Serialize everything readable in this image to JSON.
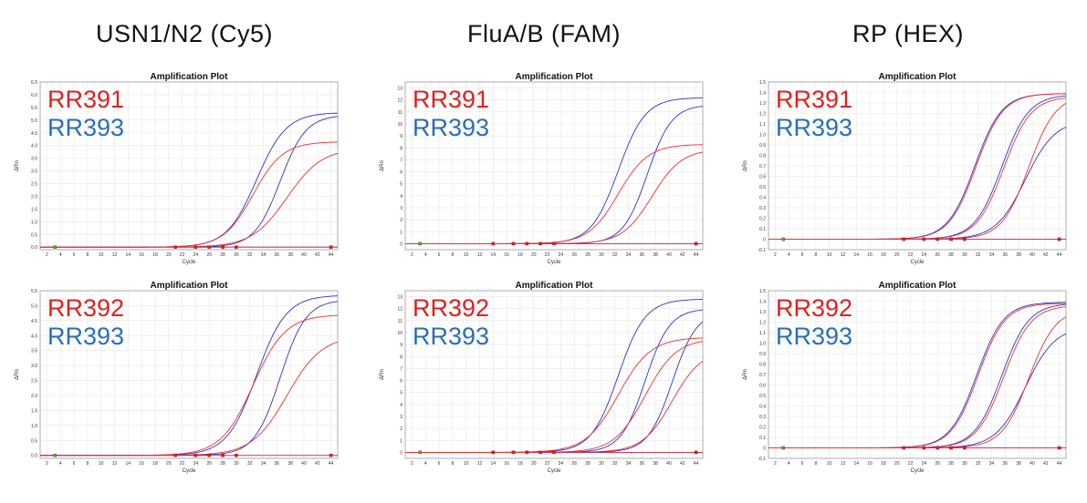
{
  "columns": [
    {
      "title": "USN1/N2 (Cy5)"
    },
    {
      "title": "FluA/B (FAM)"
    },
    {
      "title": "RP (HEX)"
    }
  ],
  "colors": {
    "red": "#e02020",
    "blue": "#2a6fb5",
    "curve_red": "#e83030",
    "curve_blue": "#3030c8",
    "grid": "#e6e6e6",
    "marker_green": "#39b54a"
  },
  "chart_data": [
    {
      "type": "line",
      "title": "Amplification Plot",
      "xlabel": "Cycle",
      "ylabel": "ΔRn",
      "xlim": [
        1,
        45
      ],
      "ylim": [
        -0.1,
        6.5
      ],
      "xticks": [
        2,
        4,
        6,
        8,
        10,
        12,
        14,
        16,
        18,
        20,
        22,
        24,
        26,
        28,
        30,
        32,
        34,
        36,
        38,
        40,
        42,
        44
      ],
      "yticks": [
        "0.0",
        "0.5",
        "1.0",
        "1.5",
        "2.0",
        "2.5",
        "3.0",
        "3.5",
        "4.0",
        "4.5",
        "5.0",
        "5.5",
        "6.0",
        "6.5"
      ],
      "labels": [
        {
          "text": "RR391",
          "color": "red"
        },
        {
          "text": "RR393",
          "color": "blue"
        }
      ],
      "series": [
        {
          "color": "blue",
          "max": 5.3,
          "mid": 33.0,
          "slope": 2.2
        },
        {
          "color": "blue",
          "max": 5.2,
          "mid": 36.5,
          "slope": 1.9
        },
        {
          "color": "red",
          "max": 4.15,
          "mid": 32.5,
          "slope": 2.2
        },
        {
          "color": "red",
          "max": 3.9,
          "mid": 37.5,
          "slope": 2.6
        }
      ]
    },
    {
      "type": "line",
      "title": "Amplification Plot",
      "xlabel": "Cycle",
      "ylabel": "ΔRn",
      "xlim": [
        1,
        45
      ],
      "ylim": [
        -0.5,
        13.5
      ],
      "xticks": [
        2,
        4,
        6,
        8,
        10,
        12,
        14,
        16,
        18,
        20,
        22,
        24,
        26,
        28,
        30,
        32,
        34,
        36,
        38,
        40,
        42,
        44
      ],
      "yticks": [
        "0",
        "1",
        "2",
        "3",
        "4",
        "5",
        "6",
        "7",
        "8",
        "9",
        "10",
        "11",
        "12",
        "13"
      ],
      "labels": [
        {
          "text": "RR391",
          "color": "red"
        },
        {
          "text": "RR393",
          "color": "blue"
        }
      ],
      "series": [
        {
          "color": "blue",
          "max": 12.2,
          "mid": 32.5,
          "slope": 2.0
        },
        {
          "color": "blue",
          "max": 11.6,
          "mid": 36.8,
          "slope": 1.8
        },
        {
          "color": "red",
          "max": 8.3,
          "mid": 32.5,
          "slope": 2.2
        },
        {
          "color": "red",
          "max": 7.9,
          "mid": 37.5,
          "slope": 2.2
        }
      ]
    },
    {
      "type": "line",
      "title": "Amplification Plot",
      "xlabel": "Cycle",
      "ylabel": "ΔRn",
      "xlim": [
        1,
        45
      ],
      "ylim": [
        -0.1,
        1.5
      ],
      "xticks": [
        2,
        4,
        6,
        8,
        10,
        12,
        14,
        16,
        18,
        20,
        22,
        24,
        26,
        28,
        30,
        32,
        34,
        36,
        38,
        40,
        42,
        44
      ],
      "yticks": [
        "-0.1",
        "0",
        "0.1",
        "0.2",
        "0.3",
        "0.4",
        "0.5",
        "0.6",
        "0.7",
        "0.8",
        "0.9",
        "1.0",
        "1.1",
        "1.2",
        "1.3",
        "1.4",
        "1.5"
      ],
      "labels": [
        {
          "text": "RR391",
          "color": "red"
        },
        {
          "text": "RR393",
          "color": "blue"
        }
      ],
      "series": [
        {
          "color": "blue",
          "max": 1.39,
          "mid": 31.5,
          "slope": 2.0
        },
        {
          "color": "red",
          "max": 1.39,
          "mid": 31.7,
          "slope": 2.0
        },
        {
          "color": "blue",
          "max": 1.38,
          "mid": 35.5,
          "slope": 2.0
        },
        {
          "color": "red",
          "max": 1.36,
          "mid": 35.8,
          "slope": 2.0
        },
        {
          "color": "blue",
          "max": 1.14,
          "mid": 39.0,
          "slope": 2.2
        },
        {
          "color": "red",
          "max": 1.38,
          "mid": 39.5,
          "slope": 2.0
        }
      ]
    },
    {
      "type": "line",
      "title": "Amplification Plot",
      "xlabel": "Cycle",
      "ylabel": "ΔRn",
      "xlim": [
        1,
        45
      ],
      "ylim": [
        -0.1,
        5.5
      ],
      "xticks": [
        2,
        4,
        6,
        8,
        10,
        12,
        14,
        16,
        18,
        20,
        22,
        24,
        26,
        28,
        30,
        32,
        34,
        36,
        38,
        40,
        42,
        44
      ],
      "yticks": [
        "0.0",
        "0.5",
        "1.0",
        "1.5",
        "2.0",
        "2.5",
        "3.0",
        "3.5",
        "4.0",
        "4.5",
        "5.0",
        "5.5"
      ],
      "labels": [
        {
          "text": "RR392",
          "color": "red"
        },
        {
          "text": "RR393",
          "color": "blue"
        }
      ],
      "series": [
        {
          "color": "blue",
          "max": 5.35,
          "mid": 33.0,
          "slope": 2.2
        },
        {
          "color": "blue",
          "max": 5.2,
          "mid": 36.5,
          "slope": 1.9
        },
        {
          "color": "red",
          "max": 4.7,
          "mid": 32.5,
          "slope": 2.4
        },
        {
          "color": "red",
          "max": 4.0,
          "mid": 37.5,
          "slope": 2.6
        }
      ]
    },
    {
      "type": "line",
      "title": "Amplification Plot",
      "xlabel": "Cycle",
      "ylabel": "ΔRn",
      "xlim": [
        1,
        45
      ],
      "ylim": [
        -0.5,
        13.5
      ],
      "xticks": [
        2,
        4,
        6,
        8,
        10,
        12,
        14,
        16,
        18,
        20,
        22,
        24,
        26,
        28,
        30,
        32,
        34,
        36,
        38,
        40,
        42,
        44
      ],
      "yticks": [
        "0",
        "1",
        "2",
        "3",
        "4",
        "5",
        "6",
        "7",
        "8",
        "9",
        "10",
        "11",
        "12",
        "13"
      ],
      "labels": [
        {
          "text": "RR392",
          "color": "red"
        },
        {
          "text": "RR393",
          "color": "blue"
        }
      ],
      "series": [
        {
          "color": "blue",
          "max": 12.8,
          "mid": 32.5,
          "slope": 2.0
        },
        {
          "color": "blue",
          "max": 12.0,
          "mid": 36.5,
          "slope": 1.8
        },
        {
          "color": "blue",
          "max": 11.8,
          "mid": 40.5,
          "slope": 1.8
        },
        {
          "color": "red",
          "max": 9.6,
          "mid": 32.5,
          "slope": 2.4
        },
        {
          "color": "red",
          "max": 9.5,
          "mid": 36.5,
          "slope": 2.3
        },
        {
          "color": "red",
          "max": 8.6,
          "mid": 40.5,
          "slope": 2.2
        }
      ]
    },
    {
      "type": "line",
      "title": "Amplification Plot",
      "xlabel": "Cycle",
      "ylabel": "ΔRn",
      "xlim": [
        1,
        45
      ],
      "ylim": [
        -0.1,
        1.5
      ],
      "xticks": [
        2,
        4,
        6,
        8,
        10,
        12,
        14,
        16,
        18,
        20,
        22,
        24,
        26,
        28,
        30,
        32,
        34,
        36,
        38,
        40,
        42,
        44
      ],
      "yticks": [
        "-0.1",
        "0",
        "0.1",
        "0.2",
        "0.3",
        "0.4",
        "0.5",
        "0.6",
        "0.7",
        "0.8",
        "0.9",
        "1.0",
        "1.1",
        "1.2",
        "1.3",
        "1.4",
        "1.5"
      ],
      "labels": [
        {
          "text": "RR392",
          "color": "red"
        },
        {
          "text": "RR393",
          "color": "blue"
        }
      ],
      "series": [
        {
          "color": "blue",
          "max": 1.39,
          "mid": 31.8,
          "slope": 2.0
        },
        {
          "color": "red",
          "max": 1.38,
          "mid": 32.0,
          "slope": 2.0
        },
        {
          "color": "blue",
          "max": 1.38,
          "mid": 35.5,
          "slope": 2.0
        },
        {
          "color": "red",
          "max": 1.36,
          "mid": 35.8,
          "slope": 2.0
        },
        {
          "color": "blue",
          "max": 1.16,
          "mid": 39.0,
          "slope": 2.2
        },
        {
          "color": "red",
          "max": 1.33,
          "mid": 39.5,
          "slope": 2.0
        }
      ]
    }
  ]
}
